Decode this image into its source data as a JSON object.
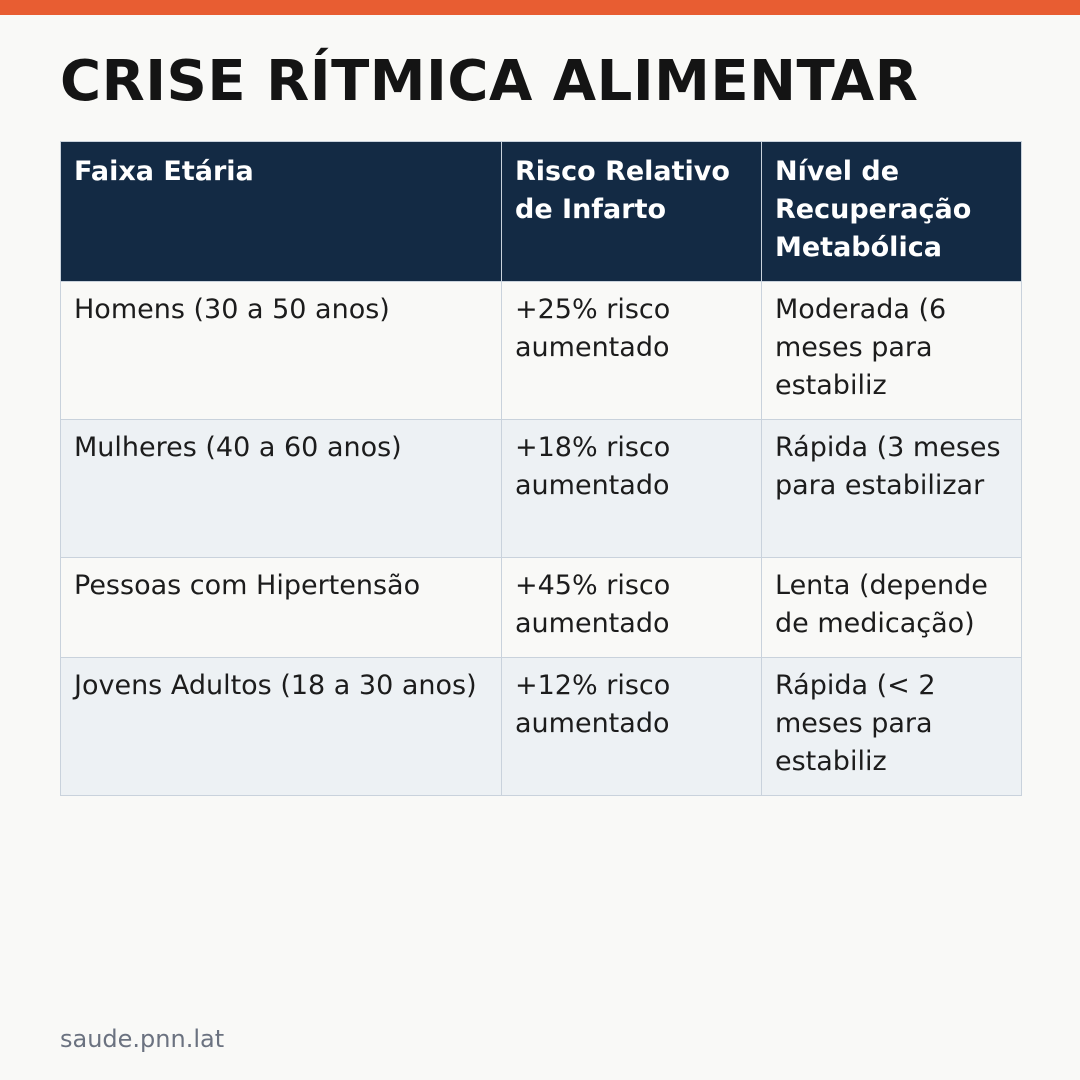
{
  "colors": {
    "accent_bar": "#e85d32",
    "header_bg": "#132a44",
    "row_odd_bg": "#f9f9f7",
    "row_even_bg": "#edf1f4"
  },
  "title": "CRISE RÍTMICA ALIMENTAR",
  "table": {
    "headers": [
      "Faixa Etária",
      "Risco Relativo de Infarto",
      "Nível de Recuperação Metabólica"
    ],
    "rows": [
      [
        "Homens (30 a 50 anos)",
        "+25% risco aumentado",
        "Moderada (6 meses para estabiliz"
      ],
      [
        "Mulheres (40 a 60 anos)",
        "+18% risco aumentado",
        "Rápida (3 meses para estabilizar"
      ],
      [
        "Pessoas com Hipertensão",
        "+45% risco aumentado",
        "Lenta (depende de medicação)"
      ],
      [
        "Jovens Adultos (18 a 30 anos)",
        "+12% risco aumentado",
        "Rápida (< 2 meses para estabiliz"
      ]
    ]
  },
  "footer": "saude.pnn.lat"
}
